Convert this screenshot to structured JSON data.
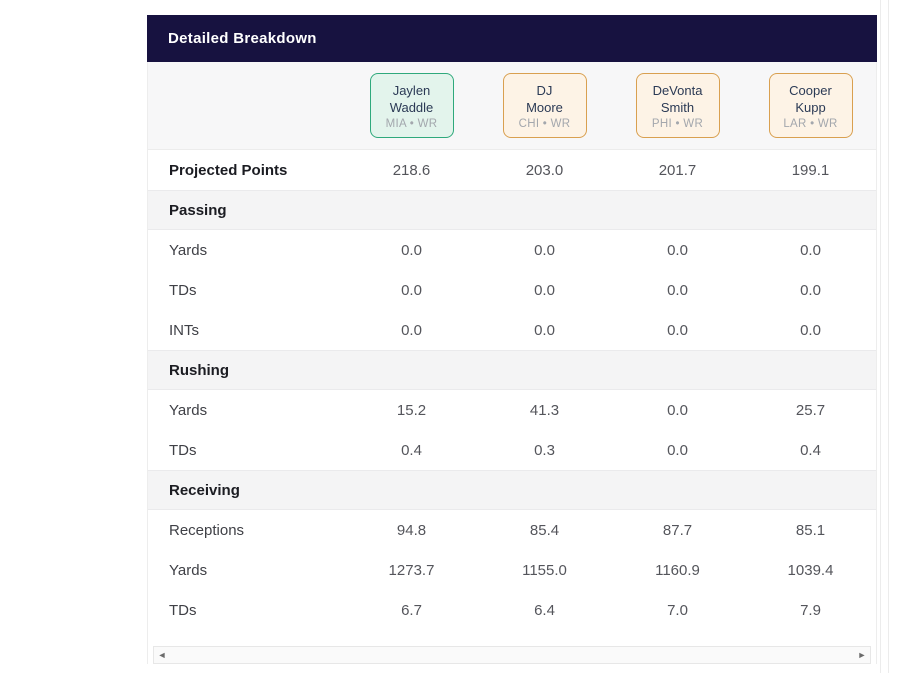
{
  "panel": {
    "title": "Detailed Breakdown"
  },
  "players": [
    {
      "first": "Jaylen",
      "last": "Waddle",
      "team": "MIA • WR",
      "highlighted": true
    },
    {
      "first": "DJ",
      "last": "Moore",
      "team": "CHI • WR",
      "highlighted": false
    },
    {
      "first": "DeVonta",
      "last": "Smith",
      "team": "PHI • WR",
      "highlighted": false
    },
    {
      "first": "Cooper",
      "last": "Kupp",
      "team": "LAR • WR",
      "highlighted": false
    }
  ],
  "rows": [
    {
      "type": "stat",
      "label": "Projected Points",
      "values": [
        "218.6",
        "203.0",
        "201.7",
        "199.1"
      ]
    },
    {
      "type": "section",
      "label": "Passing"
    },
    {
      "type": "stat",
      "label": "Yards",
      "values": [
        "0.0",
        "0.0",
        "0.0",
        "0.0"
      ]
    },
    {
      "type": "stat",
      "label": "TDs",
      "values": [
        "0.0",
        "0.0",
        "0.0",
        "0.0"
      ]
    },
    {
      "type": "stat",
      "label": "INTs",
      "values": [
        "0.0",
        "0.0",
        "0.0",
        "0.0"
      ]
    },
    {
      "type": "section",
      "label": "Rushing"
    },
    {
      "type": "stat",
      "label": "Yards",
      "values": [
        "15.2",
        "41.3",
        "0.0",
        "25.7"
      ]
    },
    {
      "type": "stat",
      "label": "TDs",
      "values": [
        "0.4",
        "0.3",
        "0.0",
        "0.4"
      ]
    },
    {
      "type": "section",
      "label": "Receiving"
    },
    {
      "type": "stat",
      "label": "Receptions",
      "values": [
        "94.8",
        "85.4",
        "87.7",
        "85.1"
      ]
    },
    {
      "type": "stat",
      "label": "Yards",
      "values": [
        "1273.7",
        "1155.0",
        "1160.9",
        "1039.4"
      ]
    },
    {
      "type": "stat",
      "label": "TDs",
      "values": [
        "6.7",
        "6.4",
        "7.0",
        "7.9"
      ]
    }
  ],
  "scrollbar": {
    "left_icon": "◄",
    "right_icon": "►"
  },
  "colors": {
    "header_bg": "#171240",
    "highlight_card_bg": "#e3f4ec",
    "highlight_card_border": "#2fa97c",
    "card_bg": "#fdf3e6",
    "card_border": "#d9a050",
    "section_bg": "#f4f4f5",
    "card_row_bg": "#f7f7f8"
  }
}
